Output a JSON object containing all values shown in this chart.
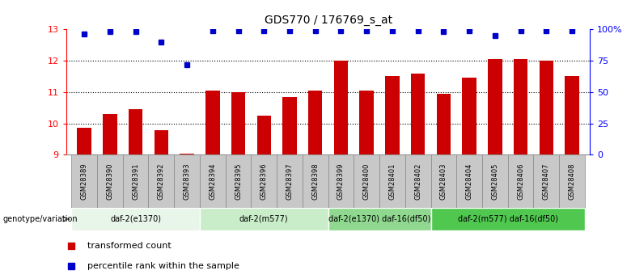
{
  "title": "GDS770 / 176769_s_at",
  "samples": [
    "GSM28389",
    "GSM28390",
    "GSM28391",
    "GSM28392",
    "GSM28393",
    "GSM28394",
    "GSM28395",
    "GSM28396",
    "GSM28397",
    "GSM28398",
    "GSM28399",
    "GSM28400",
    "GSM28401",
    "GSM28402",
    "GSM28403",
    "GSM28404",
    "GSM28405",
    "GSM28406",
    "GSM28407",
    "GSM28408"
  ],
  "bar_values": [
    9.85,
    10.3,
    10.45,
    9.78,
    9.05,
    11.05,
    11.0,
    10.25,
    10.85,
    11.05,
    12.0,
    11.05,
    11.5,
    11.6,
    10.95,
    11.45,
    12.05,
    12.05,
    12.0,
    11.5
  ],
  "dot_values_pct": [
    96,
    98,
    98,
    90,
    72,
    99,
    99,
    99,
    99,
    99,
    99,
    99,
    99,
    99,
    98,
    99,
    95,
    99,
    99,
    99
  ],
  "bar_color": "#cc0000",
  "dot_color": "#0000cc",
  "ylim_left": [
    9,
    13
  ],
  "ylim_right": [
    0,
    100
  ],
  "yticks_left": [
    9,
    10,
    11,
    12,
    13
  ],
  "yticks_right": [
    0,
    25,
    50,
    75,
    100
  ],
  "ytick_labels_right": [
    "0",
    "25",
    "50",
    "75",
    "100%"
  ],
  "groups": [
    {
      "label": "daf-2(e1370)",
      "start": 0,
      "end": 4,
      "color": "#e8f5e9"
    },
    {
      "label": "daf-2(m577)",
      "start": 5,
      "end": 9,
      "color": "#c8edc8"
    },
    {
      "label": "daf-2(e1370) daf-16(df50)",
      "start": 10,
      "end": 13,
      "color": "#90d890"
    },
    {
      "label": "daf-2(m577) daf-16(df50)",
      "start": 14,
      "end": 19,
      "color": "#50c850"
    }
  ],
  "genotype_label": "genotype/variation",
  "legend_items": [
    {
      "label": "transformed count",
      "color": "#cc0000"
    },
    {
      "label": "percentile rank within the sample",
      "color": "#0000cc"
    }
  ],
  "bar_width": 0.55,
  "sample_box_color": "#c8c8c8",
  "sample_box_edge": "#888888"
}
